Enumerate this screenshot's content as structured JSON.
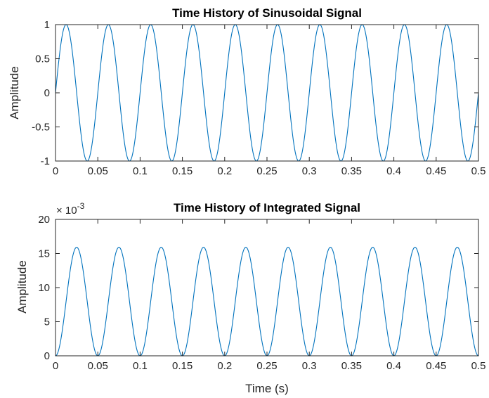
{
  "colors": {
    "line": "#0072BD",
    "axes": "#262626",
    "background": "#ffffff"
  },
  "chart_data": [
    {
      "type": "line",
      "title": "Time History of Sinusoidal Signal",
      "xlabel": "",
      "ylabel": "Amplitude",
      "xlim": [
        0,
        0.5
      ],
      "ylim": [
        -1,
        1
      ],
      "xticks": [
        "0",
        "0.05",
        "0.1",
        "0.15",
        "0.2",
        "0.25",
        "0.3",
        "0.35",
        "0.4",
        "0.45",
        "0.5"
      ],
      "yticks": [
        "-1",
        "-0.5",
        "0",
        "0.5",
        "1"
      ],
      "grid": false,
      "box": true,
      "exponent_label": "",
      "series": [
        {
          "function": "sin(2*pi*20*t)",
          "frequency_hz": 20,
          "amplitude": 1,
          "offset": 0,
          "t_range": [
            0,
            0.5
          ]
        }
      ]
    },
    {
      "type": "line",
      "title": "Time History of Integrated Signal",
      "xlabel": "Time (s)",
      "ylabel": "Amplitude",
      "xlim": [
        0,
        0.5
      ],
      "ylim": [
        0,
        0.02
      ],
      "xticks": [
        "0",
        "0.05",
        "0.1",
        "0.15",
        "0.2",
        "0.25",
        "0.3",
        "0.35",
        "0.4",
        "0.45",
        "0.5"
      ],
      "yticks": [
        "0",
        "5",
        "10",
        "15",
        "20"
      ],
      "ytick_values": [
        0,
        0.005,
        0.01,
        0.015,
        0.02
      ],
      "grid": false,
      "box": true,
      "exponent_label": "× 10",
      "exponent_power": "-3",
      "series": [
        {
          "function": "(1 - cos(2*pi*20*t)) / (2*pi*20)",
          "frequency_hz": 20,
          "peak": 0.0159,
          "t_range": [
            0,
            0.5
          ]
        }
      ]
    }
  ]
}
